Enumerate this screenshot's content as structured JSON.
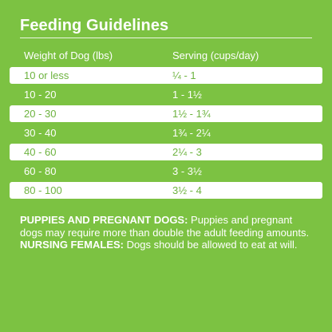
{
  "title": "Feeding Guidelines",
  "columns": {
    "weight": "Weight of Dog (lbs)",
    "serving": "Serving (cups/day)"
  },
  "rows": [
    {
      "weight": "10 or less",
      "serving": "¼ - 1"
    },
    {
      "weight": "10 - 20",
      "serving": "1 - 1½"
    },
    {
      "weight": "20 - 30",
      "serving": "1½ - 1¾"
    },
    {
      "weight": "30 - 40",
      "serving": "1¾ - 2¼"
    },
    {
      "weight": "40 - 60",
      "serving": "2¼ - 3"
    },
    {
      "weight": "60 - 80",
      "serving": "3 - 3½"
    },
    {
      "weight": "80 - 100",
      "serving": "3½ - 4"
    }
  ],
  "note": {
    "puppies_label": "PUPPIES AND PREGNANT DOGS:",
    "puppies_text": " Puppies and pregnant dogs may require more than double the adult feeding amounts. ",
    "nursing_label": "NURSING FEMALES:",
    "nursing_text": " Dogs should be allowed to eat at will."
  },
  "colors": {
    "background": "#7cc242",
    "row_highlight": "#ffffff",
    "highlight_text": "#6db33f",
    "text": "#ffffff"
  }
}
